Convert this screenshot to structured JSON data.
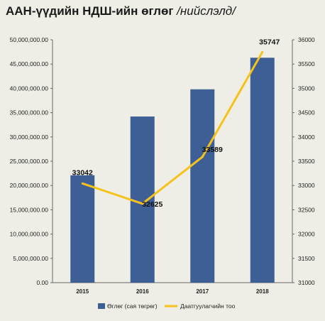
{
  "title": {
    "main": "ААН-үүдийн НДШ-ийн өглөг",
    "sub": "/нийслэлд/"
  },
  "colors": {
    "bar": "#3d5f95",
    "line": "#f5c21b",
    "background": "#eeeee6"
  },
  "chart_data": {
    "type": "bar+line",
    "categories": [
      "2015",
      "2016",
      "2017",
      "2018"
    ],
    "series": [
      {
        "name": "Өглөг (сая төгрөг)",
        "type": "bar",
        "axis": "left",
        "values": [
          22100000,
          34200000,
          39800000,
          46300000
        ]
      },
      {
        "name": "Даатгуулагчийн тоо",
        "type": "line",
        "axis": "right",
        "values": [
          33042,
          32625,
          33589,
          35747
        ],
        "labels": [
          "33042",
          "32625",
          "33589",
          "35747"
        ]
      }
    ],
    "y_left": {
      "min": 0,
      "max": 50000000,
      "ticks": [
        "0.00",
        "5,000,000.00",
        "10,000,000.00",
        "15,000,000.00",
        "20,000,000.00",
        "25,000,000.00",
        "30,000,000.00",
        "35,000,000.00",
        "40,000,000.00",
        "45,000,000.00",
        "50,000,000.00"
      ]
    },
    "y_right": {
      "min": 31000,
      "max": 36000,
      "ticks": [
        "31000",
        "31500",
        "32000",
        "32500",
        "33000",
        "33500",
        "34000",
        "34500",
        "35000",
        "35500",
        "36000"
      ]
    },
    "legend_position": "bottom",
    "grid": false
  }
}
